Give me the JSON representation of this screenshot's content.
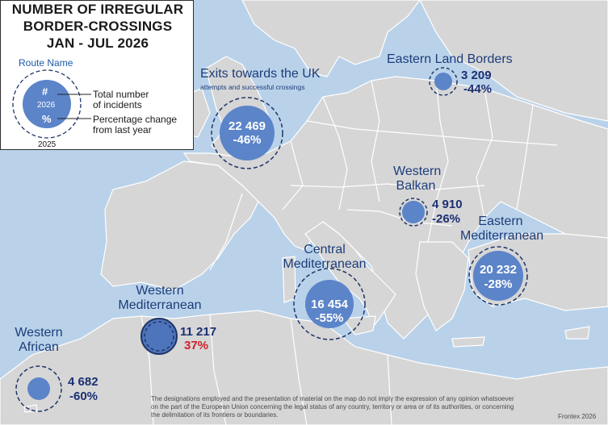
{
  "title": {
    "line1": "NUMBER OF IRREGULAR",
    "line2": "BORDER-CROSSINGS",
    "line3": "JAN - JUL  2026"
  },
  "legend": {
    "route_name": "Route Name",
    "symbol": "#",
    "year_current": "2026",
    "percent_symbol": "%",
    "total_label_1": "Total number",
    "total_label_2": "of incidents",
    "change_label_1": "Percentage change",
    "change_label_2": "from last year",
    "year_previous": "2025"
  },
  "routes": [
    {
      "name": "Exits towards the UK",
      "subtitle": "attempts and successful crossings",
      "count": "22 469",
      "change": "-46%",
      "change_value": -46
    },
    {
      "name": "Eastern Land Borders",
      "count": "3 209",
      "change": "-44%",
      "change_value": -44
    },
    {
      "name_line1": "Western",
      "name_line2": "Balkan",
      "count": "4 910",
      "change": "-26%",
      "change_value": -26
    },
    {
      "name_line1": "Eastern",
      "name_line2": "Mediterranean",
      "count": "20 232",
      "change": "-28%",
      "change_value": -28
    },
    {
      "name_line1": "Central",
      "name_line2": "Mediterranean",
      "count": "16 454",
      "change": "-55%",
      "change_value": -55
    },
    {
      "name_line1": "Western",
      "name_line2": "Mediterranean",
      "count": "11 217",
      "change": "37%",
      "change_value": 37
    },
    {
      "name_line1": "Western",
      "name_line2": "African",
      "count": "4 682",
      "change": "-60%",
      "change_value": -60
    }
  ],
  "disclaimer": {
    "line1": "The designations employed and the presentation of material on the map do not imply the expression of any opinion whatsoever",
    "line2": "on the part of the European Union concerning the legal status of any country, territory or area or of its authorities, or concerning",
    "line3": "the delimitation of its frontiers or boundaries."
  },
  "credit": "Frontex 2026",
  "colors": {
    "sea": "#b9d2ea",
    "land": "#d6d6d6",
    "border": "#ffffff",
    "bubble": "#5b84c9",
    "bubble_dark": "#4e74bb",
    "ring": "#1f3566",
    "text_dark_blue": "#1b2f73",
    "increase_red": "#d21f2a"
  }
}
